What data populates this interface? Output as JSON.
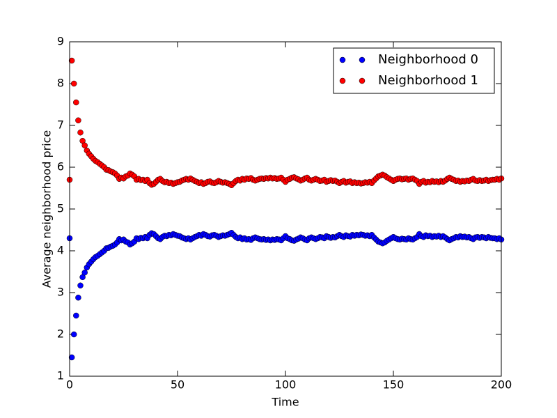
{
  "chart_data": {
    "type": "scatter",
    "xlabel": "Time",
    "ylabel": "Average neighborhood price",
    "xlim": [
      0,
      200
    ],
    "ylim": [
      1,
      9
    ],
    "xticks": [
      0,
      50,
      100,
      150,
      200
    ],
    "yticks": [
      1,
      2,
      3,
      4,
      5,
      6,
      7,
      8,
      9
    ],
    "legend": "upper right",
    "x": [
      0,
      1,
      2,
      3,
      4,
      5,
      6,
      7,
      8,
      9,
      10,
      11,
      12,
      13,
      14,
      15,
      16,
      17,
      18,
      19,
      20,
      21,
      22,
      23,
      24,
      25,
      26,
      27,
      28,
      29,
      30,
      31,
      32,
      33,
      34,
      35,
      36,
      37,
      38,
      39,
      40,
      41,
      42,
      43,
      44,
      45,
      46,
      47,
      48,
      49,
      50,
      51,
      52,
      53,
      54,
      55,
      56,
      57,
      58,
      59,
      60,
      61,
      62,
      63,
      64,
      65,
      66,
      67,
      68,
      69,
      70,
      71,
      72,
      73,
      74,
      75,
      76,
      77,
      78,
      79,
      80,
      81,
      82,
      83,
      84,
      85,
      86,
      87,
      88,
      89,
      90,
      91,
      92,
      93,
      94,
      95,
      96,
      97,
      98,
      99,
      100,
      101,
      102,
      103,
      104,
      105,
      106,
      107,
      108,
      109,
      110,
      111,
      112,
      113,
      114,
      115,
      116,
      117,
      118,
      119,
      120,
      121,
      122,
      123,
      124,
      125,
      126,
      127,
      128,
      129,
      130,
      131,
      132,
      133,
      134,
      135,
      136,
      137,
      138,
      139,
      140,
      141,
      142,
      143,
      144,
      145,
      146,
      147,
      148,
      149,
      150,
      151,
      152,
      153,
      154,
      155,
      156,
      157,
      158,
      159,
      160,
      161,
      162,
      163,
      164,
      165,
      166,
      167,
      168,
      169,
      170,
      171,
      172,
      173,
      174,
      175,
      176,
      177,
      178,
      179,
      180,
      181,
      182,
      183,
      184,
      185,
      186,
      187,
      188,
      189,
      190,
      191,
      192,
      193,
      194,
      195,
      196,
      197,
      198,
      199,
      200
    ],
    "series": [
      {
        "name": "Neighborhood 0",
        "color": "#0000ff",
        "values": [
          4.3,
          1.45,
          2.0,
          2.45,
          2.88,
          3.17,
          3.37,
          3.48,
          3.6,
          3.68,
          3.74,
          3.8,
          3.85,
          3.88,
          3.92,
          3.96,
          4.0,
          4.06,
          4.07,
          4.1,
          4.12,
          4.15,
          4.2,
          4.28,
          4.25,
          4.27,
          4.22,
          4.2,
          4.15,
          4.18,
          4.22,
          4.3,
          4.28,
          4.31,
          4.3,
          4.33,
          4.3,
          4.38,
          4.42,
          4.4,
          4.35,
          4.3,
          4.28,
          4.33,
          4.36,
          4.35,
          4.38,
          4.37,
          4.4,
          4.38,
          4.36,
          4.35,
          4.32,
          4.3,
          4.28,
          4.3,
          4.27,
          4.3,
          4.33,
          4.35,
          4.38,
          4.36,
          4.4,
          4.38,
          4.35,
          4.34,
          4.37,
          4.38,
          4.36,
          4.33,
          4.35,
          4.37,
          4.36,
          4.38,
          4.4,
          4.43,
          4.38,
          4.33,
          4.3,
          4.32,
          4.28,
          4.3,
          4.27,
          4.28,
          4.26,
          4.3,
          4.32,
          4.3,
          4.28,
          4.27,
          4.28,
          4.26,
          4.27,
          4.25,
          4.27,
          4.26,
          4.28,
          4.27,
          4.25,
          4.3,
          4.35,
          4.3,
          4.28,
          4.25,
          4.24,
          4.27,
          4.29,
          4.32,
          4.3,
          4.27,
          4.25,
          4.3,
          4.32,
          4.3,
          4.28,
          4.3,
          4.33,
          4.32,
          4.3,
          4.35,
          4.33,
          4.31,
          4.33,
          4.32,
          4.35,
          4.38,
          4.35,
          4.33,
          4.37,
          4.35,
          4.34,
          4.38,
          4.36,
          4.38,
          4.37,
          4.39,
          4.38,
          4.36,
          4.37,
          4.35,
          4.38,
          4.32,
          4.27,
          4.22,
          4.2,
          4.18,
          4.2,
          4.24,
          4.27,
          4.3,
          4.33,
          4.3,
          4.28,
          4.27,
          4.29,
          4.28,
          4.27,
          4.3,
          4.28,
          4.27,
          4.3,
          4.33,
          4.4,
          4.35,
          4.33,
          4.37,
          4.35,
          4.36,
          4.33,
          4.35,
          4.34,
          4.36,
          4.33,
          4.35,
          4.32,
          4.28,
          4.25,
          4.28,
          4.3,
          4.33,
          4.32,
          4.35,
          4.33,
          4.34,
          4.32,
          4.33,
          4.3,
          4.28,
          4.32,
          4.33,
          4.31,
          4.33,
          4.32,
          4.3,
          4.33,
          4.31,
          4.3,
          4.3,
          4.28,
          4.3,
          4.27
        ]
      },
      {
        "name": "Neighborhood 1",
        "color": "#ff0000",
        "values": [
          5.7,
          8.55,
          8.0,
          7.55,
          7.12,
          6.83,
          6.63,
          6.52,
          6.4,
          6.32,
          6.26,
          6.2,
          6.15,
          6.12,
          6.08,
          6.04,
          6.0,
          5.94,
          5.93,
          5.9,
          5.88,
          5.85,
          5.8,
          5.72,
          5.75,
          5.73,
          5.78,
          5.8,
          5.85,
          5.82,
          5.78,
          5.7,
          5.72,
          5.69,
          5.7,
          5.67,
          5.7,
          5.62,
          5.58,
          5.6,
          5.65,
          5.7,
          5.72,
          5.67,
          5.64,
          5.65,
          5.62,
          5.63,
          5.6,
          5.62,
          5.64,
          5.65,
          5.68,
          5.7,
          5.72,
          5.7,
          5.73,
          5.7,
          5.67,
          5.65,
          5.62,
          5.64,
          5.6,
          5.62,
          5.65,
          5.66,
          5.63,
          5.62,
          5.64,
          5.67,
          5.65,
          5.63,
          5.64,
          5.62,
          5.6,
          5.57,
          5.62,
          5.67,
          5.7,
          5.68,
          5.72,
          5.7,
          5.73,
          5.72,
          5.74,
          5.7,
          5.68,
          5.7,
          5.72,
          5.73,
          5.72,
          5.74,
          5.73,
          5.75,
          5.73,
          5.74,
          5.72,
          5.73,
          5.75,
          5.7,
          5.65,
          5.7,
          5.72,
          5.75,
          5.76,
          5.73,
          5.71,
          5.68,
          5.7,
          5.73,
          5.75,
          5.7,
          5.68,
          5.7,
          5.72,
          5.7,
          5.67,
          5.68,
          5.7,
          5.65,
          5.67,
          5.69,
          5.67,
          5.68,
          5.65,
          5.62,
          5.65,
          5.67,
          5.63,
          5.65,
          5.66,
          5.62,
          5.64,
          5.62,
          5.63,
          5.61,
          5.62,
          5.64,
          5.63,
          5.65,
          5.62,
          5.68,
          5.73,
          5.78,
          5.8,
          5.82,
          5.8,
          5.76,
          5.73,
          5.7,
          5.67,
          5.7,
          5.72,
          5.73,
          5.71,
          5.72,
          5.73,
          5.7,
          5.72,
          5.73,
          5.7,
          5.67,
          5.6,
          5.65,
          5.67,
          5.63,
          5.65,
          5.64,
          5.67,
          5.65,
          5.66,
          5.64,
          5.67,
          5.65,
          5.68,
          5.72,
          5.75,
          5.72,
          5.7,
          5.67,
          5.68,
          5.65,
          5.67,
          5.66,
          5.68,
          5.67,
          5.7,
          5.72,
          5.68,
          5.67,
          5.69,
          5.67,
          5.68,
          5.7,
          5.67,
          5.69,
          5.7,
          5.7,
          5.72,
          5.7,
          5.73
        ]
      }
    ]
  }
}
